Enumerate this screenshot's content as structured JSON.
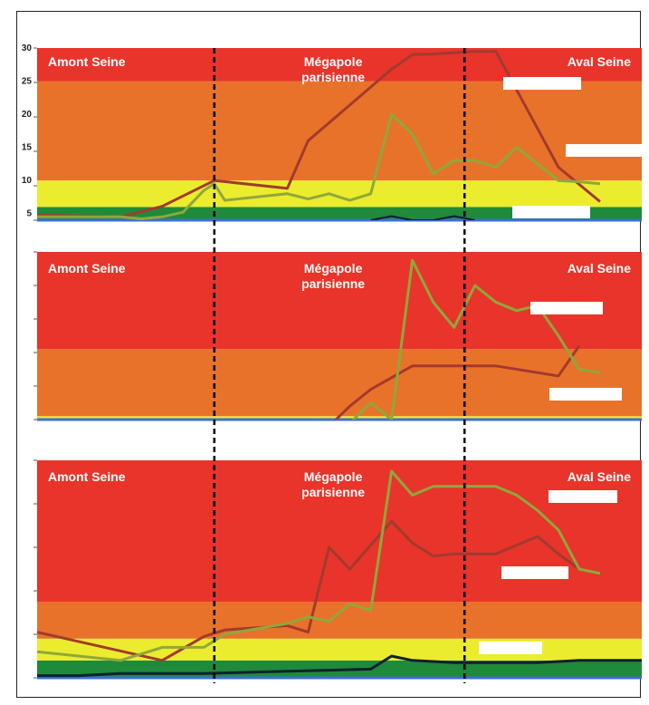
{
  "colors": {
    "band_red": "#e8342a",
    "band_orange": "#e9722a",
    "band_yellow": "#ecec2e",
    "band_green": "#1f8a3a",
    "series_brown": "#a23a2e",
    "series_olive": "#8fa83a",
    "series_dark": "#102030",
    "axis_blue": "#3a6fd8",
    "divider": "#000000",
    "legend_box": "#ffffff"
  },
  "chart_data": [
    {
      "type": "line",
      "region_labels": [
        "Amont Seine",
        "Mégapole parisienne",
        "Aval Seine"
      ],
      "dividers_x": [
        8.5,
        20.5
      ],
      "xlim": [
        0,
        29
      ],
      "ylim": [
        4,
        30
      ],
      "yticks": [
        5,
        10,
        15,
        20,
        25,
        30
      ],
      "bands": [
        {
          "from": 4,
          "to": 6,
          "color": "green"
        },
        {
          "from": 6,
          "to": 10,
          "color": "yellow"
        },
        {
          "from": 10,
          "to": 25,
          "color": "orange"
        },
        {
          "from": 25,
          "to": 30,
          "color": "red"
        }
      ],
      "series": [
        {
          "color": "brown",
          "width": 3,
          "x": [
            0,
            4,
            6,
            8.5,
            12,
            13,
            17,
            18,
            19,
            21,
            22,
            25,
            27
          ],
          "y": [
            4.8,
            4.5,
            6.1,
            10,
            8.8,
            16,
            26.8,
            29,
            29.1,
            29.5,
            29.5,
            12,
            6.8
          ]
        },
        {
          "color": "olive",
          "width": 3,
          "x": [
            0,
            4,
            5,
            6,
            7,
            8,
            8.5,
            9,
            12,
            13,
            14,
            15,
            16,
            17,
            18,
            19,
            20,
            21,
            22,
            23,
            24,
            25,
            26,
            27
          ],
          "y": [
            4.5,
            4.5,
            4.2,
            4.5,
            5.2,
            8.5,
            9.5,
            7,
            8,
            7.2,
            8,
            7,
            8,
            20,
            17,
            11,
            13,
            13,
            12,
            15,
            12.5,
            10,
            9.8,
            9.5
          ]
        },
        {
          "color": "dark",
          "width": 2,
          "x": [
            16,
            17,
            18,
            19,
            20,
            21
          ],
          "y": [
            4,
            4.6,
            4,
            4,
            4.6,
            4
          ]
        }
      ],
      "legend_boxes": 3
    },
    {
      "type": "line",
      "region_labels": [
        "Amont Seine",
        "Mégapole parisienne",
        "Aval Seine"
      ],
      "dividers_x": [
        8.5,
        20.5
      ],
      "xlim": [
        0,
        29
      ],
      "ylim": [
        0,
        100
      ],
      "bands": [
        {
          "from": 0,
          "to": 2,
          "color": "yellow"
        },
        {
          "from": 2,
          "to": 42,
          "color": "orange"
        },
        {
          "from": 42,
          "to": 100,
          "color": "red"
        }
      ],
      "series": [
        {
          "color": "brown",
          "width": 3,
          "x": [
            14,
            15,
            16,
            18,
            20,
            22,
            24,
            25,
            26
          ],
          "y": [
            -4,
            8,
            18,
            32,
            32,
            32,
            28,
            26,
            44
          ]
        },
        {
          "color": "olive",
          "width": 3,
          "x": [
            14,
            15,
            16,
            17,
            18,
            19,
            20,
            21,
            22,
            23,
            24,
            25,
            26,
            27
          ],
          "y": [
            -4,
            -2,
            10,
            0,
            95,
            70,
            55,
            80,
            70,
            65,
            68,
            50,
            30,
            28
          ]
        }
      ],
      "legend_boxes": 2
    },
    {
      "type": "line",
      "region_labels": [
        "Amont Seine",
        "Mégapole parisienne",
        "Aval Seine"
      ],
      "dividers_x": [
        8.5,
        20.5
      ],
      "xlim": [
        0,
        29
      ],
      "ylim": [
        0,
        100
      ],
      "bands": [
        {
          "from": 0,
          "to": 8,
          "color": "green"
        },
        {
          "from": 8,
          "to": 18,
          "color": "yellow"
        },
        {
          "from": 18,
          "to": 35,
          "color": "orange"
        },
        {
          "from": 35,
          "to": 100,
          "color": "red"
        }
      ],
      "series": [
        {
          "color": "brown",
          "width": 3,
          "x": [
            0,
            6,
            8,
            9,
            12,
            13,
            14,
            15,
            17,
            18,
            19,
            20,
            22,
            24,
            25,
            26,
            27
          ],
          "y": [
            21,
            8,
            19,
            22,
            24,
            21,
            60,
            50,
            72,
            62,
            56,
            57,
            57,
            65,
            57,
            50,
            48
          ]
        },
        {
          "color": "olive",
          "width": 3,
          "x": [
            0,
            4,
            6,
            8,
            9,
            12,
            13,
            14,
            15,
            16,
            17,
            18,
            19,
            20,
            21,
            22,
            23,
            24,
            25,
            26,
            27
          ],
          "y": [
            12,
            8,
            14,
            14,
            20,
            25,
            28,
            26,
            34,
            31,
            95,
            84,
            88,
            88,
            88,
            88,
            84,
            77,
            68,
            50,
            48
          ]
        },
        {
          "color": "dark",
          "width": 3,
          "x": [
            0,
            2,
            4,
            6,
            8,
            10,
            12,
            14,
            16,
            17,
            18,
            20,
            22,
            24,
            26,
            28,
            29
          ],
          "y": [
            1,
            1,
            2,
            2,
            2,
            2.5,
            3,
            3.5,
            4,
            10,
            8,
            7,
            7,
            7,
            8,
            8,
            8
          ]
        }
      ],
      "legend_boxes": 3
    }
  ]
}
